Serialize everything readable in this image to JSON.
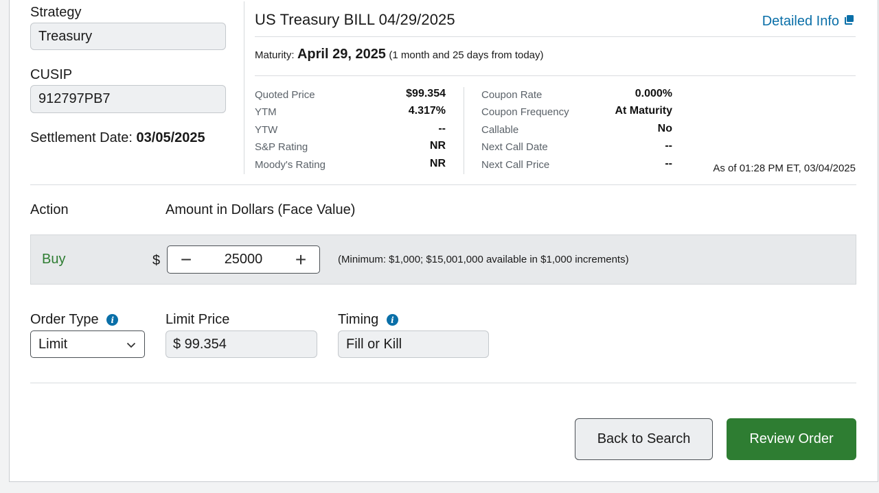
{
  "left": {
    "strategy_label": "Strategy",
    "strategy_value": "Treasury",
    "cusip_label": "CUSIP",
    "cusip_value": "912797PB7",
    "settlement_label": "Settlement Date:",
    "settlement_value": "03/05/2025"
  },
  "bond": {
    "title": "US Treasury BILL 04/29/2025",
    "detailed_info_label": "Detailed Info",
    "maturity_label": "Maturity:",
    "maturity_date": "April 29, 2025",
    "maturity_relative": "(1 month and 25 days from today)",
    "left_stats": [
      {
        "label": "Quoted Price",
        "value": "$99.354"
      },
      {
        "label": "YTM",
        "value": "4.317%"
      },
      {
        "label": "YTW",
        "value": "--"
      },
      {
        "label": "S&P Rating",
        "value": "NR"
      },
      {
        "label": "Moody's Rating",
        "value": "NR"
      }
    ],
    "right_stats": [
      {
        "label": "Coupon Rate",
        "value": "0.000%"
      },
      {
        "label": "Coupon Frequency",
        "value": "At Maturity"
      },
      {
        "label": "Callable",
        "value": "No"
      },
      {
        "label": "Next Call Date",
        "value": "--"
      },
      {
        "label": "Next Call Price",
        "value": "--"
      }
    ],
    "as_of": "As of 01:28 PM ET, 03/04/2025"
  },
  "order": {
    "action_label": "Action",
    "amount_label": "Amount in Dollars (Face Value)",
    "action_value": "Buy",
    "currency_symbol": "$",
    "minus_glyph": "−",
    "plus_glyph": "+",
    "amount_value": "25000",
    "amount_hint": "(Minimum: $1,000; $15,001,000 available in $1,000 increments)",
    "order_type_label": "Order Type",
    "order_type_value": "Limit",
    "limit_price_label": "Limit Price",
    "limit_price_value": "$ 99.354",
    "timing_label": "Timing",
    "timing_value": "Fill or Kill",
    "info_glyph": "i"
  },
  "buttons": {
    "back_label": "Back to Search",
    "review_label": "Review Order"
  },
  "colors": {
    "accent_blue": "#0a6fa8",
    "primary_green": "#2e7d32",
    "field_bg": "#eef0f2",
    "action_bar_bg": "#e7e9eb"
  },
  "icons": {
    "detailed_info": "external-window-icon",
    "info": "info-circle-icon",
    "dropdown": "chevron-down-icon",
    "decrement": "minus-icon",
    "increment": "plus-icon"
  }
}
